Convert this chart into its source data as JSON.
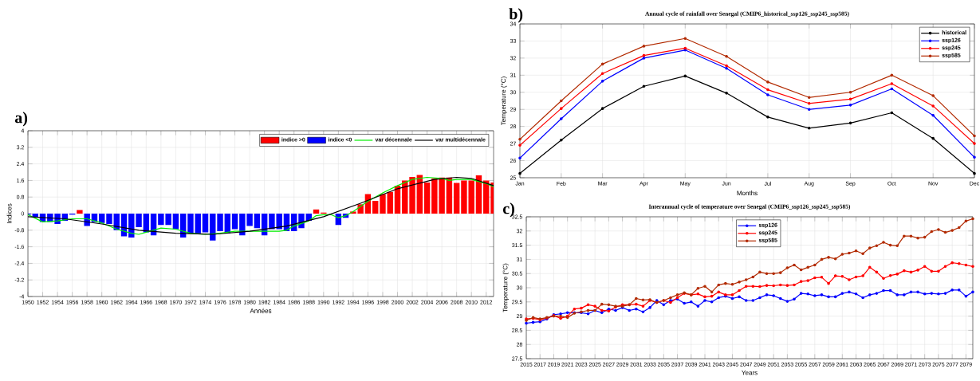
{
  "chart_data": [
    {
      "type": "bar",
      "annotations": [
        "a)"
      ],
      "xlabel": "Années",
      "ylabel": "Indices",
      "x": [
        1950,
        1951,
        1952,
        1953,
        1954,
        1955,
        1956,
        1957,
        1958,
        1959,
        1960,
        1961,
        1962,
        1963,
        1964,
        1965,
        1966,
        1967,
        1968,
        1969,
        1970,
        1971,
        1972,
        1973,
        1974,
        1975,
        1976,
        1977,
        1978,
        1979,
        1980,
        1981,
        1982,
        1983,
        1984,
        1985,
        1986,
        1987,
        1988,
        1989,
        1990,
        1991,
        1992,
        1993,
        1994,
        1995,
        1996,
        1997,
        1998,
        1999,
        2000,
        2001,
        2002,
        2003,
        2004,
        2005,
        2006,
        2007,
        2008,
        2009,
        2010,
        2011,
        2012,
        2013
      ],
      "series": [
        {
          "name": "indice >0",
          "color": "#ff0000",
          "values": [
            null,
            null,
            null,
            null,
            null,
            null,
            null,
            0.17,
            null,
            null,
            null,
            null,
            null,
            null,
            null,
            null,
            null,
            null,
            null,
            null,
            null,
            null,
            null,
            null,
            null,
            null,
            null,
            null,
            null,
            null,
            null,
            null,
            null,
            null,
            null,
            null,
            null,
            null,
            null,
            0.2,
            0.05,
            null,
            null,
            null,
            0.1,
            0.45,
            0.94,
            0.62,
            0.94,
            1.05,
            1.35,
            1.6,
            1.77,
            1.87,
            1.5,
            1.69,
            1.74,
            1.74,
            1.48,
            1.6,
            1.6,
            1.85,
            1.6,
            1.5
          ]
        },
        {
          "name": "indice <0",
          "color": "#0000ff",
          "values": [
            -0.05,
            -0.15,
            -0.4,
            -0.4,
            -0.5,
            -0.35,
            -0.05,
            null,
            -0.6,
            -0.4,
            -0.45,
            -0.5,
            -0.8,
            -1.1,
            -1.15,
            -0.65,
            -0.9,
            -1.05,
            -0.55,
            -0.55,
            -0.75,
            -1.15,
            -0.95,
            -0.95,
            -0.9,
            -1.3,
            -0.85,
            -0.95,
            -0.75,
            -1.05,
            -0.6,
            -0.7,
            -1.05,
            -0.75,
            -0.75,
            -0.85,
            -0.85,
            -0.7,
            -0.35,
            null,
            null,
            null,
            -0.55,
            -0.2,
            null,
            null,
            null,
            null,
            null,
            null,
            null,
            null,
            null,
            null,
            null,
            null,
            null,
            null,
            null,
            null,
            null,
            null,
            null,
            null
          ]
        },
        {
          "name": "var décennale",
          "type": "line",
          "color": "#00ee00",
          "x": [
            1950,
            1952,
            1954,
            1956,
            1958,
            1960,
            1962,
            1964,
            1965,
            1966,
            1968,
            1970,
            1972,
            1974,
            1976,
            1978,
            1980,
            1982,
            1984,
            1985,
            1986,
            1988,
            1989,
            1990,
            1991,
            1992,
            1993,
            1994,
            1996,
            1998,
            2000,
            2002,
            2004,
            2006,
            2007,
            2008,
            2010,
            2012,
            2013
          ],
          "values": [
            -0.05,
            -0.4,
            -0.35,
            -0.25,
            -0.25,
            -0.45,
            -0.75,
            -0.95,
            -1.0,
            -0.9,
            -0.7,
            -0.75,
            -0.95,
            -1.0,
            -0.95,
            -0.85,
            -0.85,
            -0.85,
            -0.85,
            -0.8,
            -0.6,
            -0.35,
            -0.1,
            -0.05,
            -0.05,
            -0.2,
            -0.1,
            0.1,
            0.6,
            1.0,
            1.35,
            1.65,
            1.75,
            1.7,
            1.6,
            1.65,
            1.65,
            1.45,
            1.3
          ]
        },
        {
          "name": "var multidécennale",
          "type": "line",
          "color": "#000000",
          "x": [
            1950,
            1955,
            1960,
            1965,
            1970,
            1975,
            1980,
            1985,
            1990,
            1995,
            2000,
            2005,
            2008,
            2010,
            2013
          ],
          "values": [
            -0.15,
            -0.25,
            -0.5,
            -0.8,
            -0.95,
            -1.0,
            -0.85,
            -0.6,
            -0.15,
            0.5,
            1.2,
            1.65,
            1.75,
            1.7,
            1.35
          ]
        }
      ],
      "xlim": [
        1950,
        2013
      ],
      "xticks": [
        1950,
        1952,
        1954,
        1956,
        1958,
        1960,
        1962,
        1964,
        1966,
        1968,
        1970,
        1972,
        1974,
        1976,
        1978,
        1980,
        1982,
        1984,
        1986,
        1988,
        1990,
        1992,
        1994,
        1996,
        1998,
        2000,
        2002,
        2004,
        2006,
        2008,
        2010,
        2012
      ],
      "ylim": [
        -4,
        4
      ],
      "yticks": [
        -4,
        -3.2,
        -2.4,
        -1.6,
        -0.8,
        0,
        0.8,
        1.6,
        2.4,
        3.2,
        4
      ],
      "grid": true,
      "legend": "top right"
    },
    {
      "type": "line",
      "annotations": [
        "b)"
      ],
      "title": "Annual cycle of rainfall over Senegal (CMIP6_historical_ssp126_ssp245_ssp585)",
      "xlabel": "Months",
      "ylabel": "Temperature (°C)",
      "categories": [
        "Jan",
        "Feb",
        "Mar",
        "Apr",
        "May",
        "Jun",
        "Jul",
        "Aug",
        "Sep",
        "Oct",
        "Nov",
        "Dec"
      ],
      "series": [
        {
          "name": "historical",
          "color": "#000000",
          "values": [
            25.25,
            27.2,
            29.05,
            30.35,
            30.95,
            29.95,
            28.55,
            27.9,
            28.2,
            28.8,
            27.3,
            25.25
          ]
        },
        {
          "name": "ssp126",
          "color": "#0000ff",
          "values": [
            26.15,
            28.45,
            30.65,
            32.0,
            32.47,
            31.4,
            29.85,
            29.0,
            29.25,
            30.2,
            28.65,
            26.2
          ]
        },
        {
          "name": "ssp245",
          "color": "#ff0000",
          "values": [
            26.9,
            29.05,
            31.1,
            32.15,
            32.58,
            31.55,
            30.15,
            29.35,
            29.6,
            30.5,
            29.2,
            27.0
          ]
        },
        {
          "name": "ssp585",
          "color": "#b22a00",
          "values": [
            27.25,
            29.5,
            31.65,
            32.7,
            33.15,
            32.1,
            30.6,
            29.7,
            30.0,
            31.0,
            29.8,
            27.45
          ]
        }
      ],
      "ylim": [
        25,
        34
      ],
      "yticks": [
        25,
        26,
        27,
        28,
        29,
        30,
        31,
        32,
        33,
        34
      ],
      "grid": true,
      "legend": "top right",
      "marker": "circle"
    },
    {
      "type": "line",
      "annotations": [
        "c)"
      ],
      "title": "Interannual cycle of temperature over Senegal (CMIP6_ssp126_ssp245_ssp585)",
      "xlabel": "Years",
      "ylabel": "Temperature (°C)",
      "x": [
        2015,
        2016,
        2017,
        2018,
        2019,
        2020,
        2021,
        2022,
        2023,
        2024,
        2025,
        2026,
        2027,
        2028,
        2029,
        2030,
        2031,
        2032,
        2033,
        2034,
        2035,
        2036,
        2037,
        2038,
        2039,
        2040,
        2041,
        2042,
        2043,
        2044,
        2045,
        2046,
        2047,
        2048,
        2049,
        2050,
        2051,
        2052,
        2053,
        2054,
        2055,
        2056,
        2057,
        2058,
        2059,
        2060,
        2061,
        2062,
        2063,
        2064,
        2065,
        2066,
        2067,
        2068,
        2069,
        2070,
        2071,
        2072,
        2073,
        2074,
        2075,
        2076,
        2077,
        2078,
        2079,
        2080
      ],
      "series": [
        {
          "name": "ssp126",
          "color": "#0000ff",
          "values": [
            28.75,
            28.78,
            28.8,
            28.9,
            29.05,
            29.08,
            29.12,
            29.12,
            29.12,
            29.08,
            29.2,
            29.12,
            29.25,
            29.2,
            29.3,
            29.2,
            29.25,
            29.15,
            29.3,
            29.55,
            29.4,
            29.55,
            29.6,
            29.45,
            29.5,
            29.35,
            29.55,
            29.5,
            29.65,
            29.7,
            29.62,
            29.68,
            29.55,
            29.55,
            29.65,
            29.75,
            29.72,
            29.62,
            29.52,
            29.6,
            29.8,
            29.78,
            29.72,
            29.75,
            29.68,
            29.68,
            29.8,
            29.85,
            29.78,
            29.65,
            29.75,
            29.8,
            29.9,
            29.9,
            29.75,
            29.75,
            29.85,
            29.85,
            29.78,
            29.8,
            29.78,
            29.8,
            29.92,
            29.92,
            29.7,
            29.85
          ]
        },
        {
          "name": "ssp245",
          "color": "#ff0000",
          "values": [
            28.9,
            28.92,
            28.87,
            28.93,
            29.02,
            28.92,
            29.0,
            29.25,
            29.28,
            29.4,
            29.35,
            29.2,
            29.18,
            29.32,
            29.4,
            29.4,
            29.42,
            29.35,
            29.55,
            29.48,
            29.55,
            29.48,
            29.65,
            29.8,
            29.75,
            29.78,
            29.68,
            29.7,
            29.85,
            29.75,
            29.75,
            29.9,
            30.05,
            30.05,
            30.04,
            30.08,
            30.07,
            30.1,
            30.08,
            30.1,
            30.22,
            30.25,
            30.35,
            30.37,
            30.15,
            30.42,
            30.4,
            30.28,
            30.38,
            30.42,
            30.72,
            30.55,
            30.33,
            30.43,
            30.48,
            30.6,
            30.55,
            30.62,
            30.75,
            30.58,
            30.58,
            30.75,
            30.88,
            30.85,
            30.8,
            30.75
          ]
        },
        {
          "name": "ssp585",
          "color": "#b22a00",
          "values": [
            28.85,
            28.95,
            28.9,
            28.95,
            29.0,
            29.0,
            28.95,
            29.1,
            29.15,
            29.2,
            29.2,
            29.42,
            29.4,
            29.35,
            29.35,
            29.4,
            29.62,
            29.57,
            29.58,
            29.48,
            29.55,
            29.65,
            29.75,
            29.82,
            29.75,
            29.98,
            30.05,
            29.85,
            30.1,
            30.15,
            30.12,
            30.2,
            30.28,
            30.38,
            30.55,
            30.5,
            30.5,
            30.53,
            30.7,
            30.8,
            30.63,
            30.72,
            30.8,
            31.0,
            31.07,
            31.02,
            31.18,
            31.22,
            31.3,
            31.2,
            31.4,
            31.48,
            31.6,
            31.5,
            31.48,
            31.82,
            31.82,
            31.75,
            31.78,
            31.98,
            32.05,
            31.95,
            32.02,
            32.12,
            32.35,
            32.43
          ]
        }
      ],
      "xlim": [
        2015,
        2080
      ],
      "xticks": [
        2015,
        2017,
        2019,
        2021,
        2023,
        2025,
        2027,
        2029,
        2031,
        2033,
        2035,
        2037,
        2039,
        2041,
        2043,
        2045,
        2047,
        2049,
        2051,
        2053,
        2055,
        2057,
        2059,
        2061,
        2063,
        2065,
        2067,
        2069,
        2071,
        2073,
        2075,
        2077,
        2079
      ],
      "ylim": [
        27.5,
        32.5
      ],
      "yticks": [
        27.5,
        28,
        28.5,
        29,
        29.5,
        30,
        30.5,
        31,
        31.5,
        32,
        32.5
      ],
      "grid": true,
      "legend": "top",
      "marker": "circle"
    }
  ]
}
